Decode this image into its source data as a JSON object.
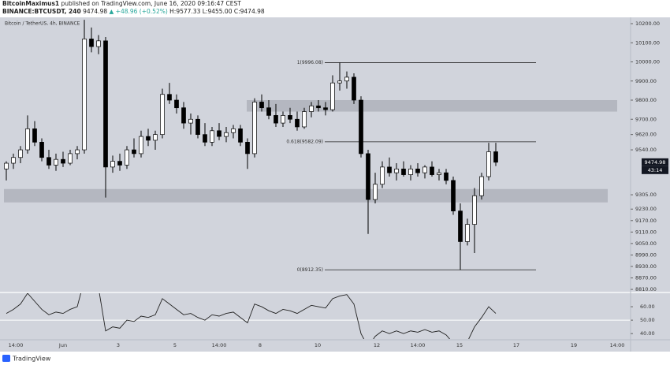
{
  "header": {
    "author": "BitcoinMaximus1",
    "published": "published on TradingView.com, June 16, 2020 09:16:47 CEST",
    "symbol": "BINANCE:BTCUSDT, 240",
    "last": "9474.98",
    "change": "▲ +48.96 (+0.52%)",
    "high": "H:9577.33",
    "low": "L:9455.00",
    "close": "C:9474.98"
  },
  "footer": {
    "brand": "TradingView"
  },
  "chart_data": [
    {
      "type": "candlestick",
      "title": "Bitcoin / TetherUS, 4h, BINANCE",
      "open": [
        9440,
        9470,
        9500,
        9540,
        9650,
        9580,
        9500,
        9460,
        9490,
        9470,
        9520,
        9540,
        10120,
        10080,
        10110,
        9450,
        9480,
        9460,
        9540,
        9520,
        9610,
        9590,
        9620,
        9830,
        9800,
        9760,
        9680,
        9700,
        9620,
        9580,
        9640,
        9610,
        9630,
        9650,
        9580,
        9520,
        9790,
        9760,
        9720,
        9680,
        9720,
        9700,
        9660,
        9740,
        9770,
        9760,
        9750,
        9890,
        9900,
        9920,
        9800,
        9520,
        9280,
        9360,
        9450,
        9420,
        9440,
        9410,
        9440,
        9420,
        9450,
        9410,
        9420,
        9380,
        9220,
        9060,
        9150,
        9300,
        9400,
        9530
      ],
      "high": [
        9480,
        9520,
        9560,
        9720,
        9690,
        9600,
        9540,
        9520,
        9530,
        9540,
        9560,
        10220,
        10180,
        10140,
        10130,
        9510,
        9520,
        9560,
        9600,
        9640,
        9650,
        9640,
        9860,
        9890,
        9830,
        9790,
        9730,
        9720,
        9680,
        9660,
        9680,
        9660,
        9670,
        9670,
        9600,
        9810,
        9830,
        9800,
        9780,
        9740,
        9760,
        9740,
        9760,
        9790,
        9800,
        9790,
        9930,
        9996,
        9950,
        9940,
        9820,
        9540,
        9420,
        9480,
        9500,
        9470,
        9480,
        9460,
        9470,
        9460,
        9480,
        9440,
        9440,
        9400,
        9260,
        9180,
        9340,
        9420,
        9577,
        9577
      ],
      "low": [
        9380,
        9440,
        9470,
        9520,
        9560,
        9480,
        9440,
        9430,
        9450,
        9460,
        9490,
        9520,
        10050,
        10040,
        9290,
        9420,
        9430,
        9440,
        9500,
        9500,
        9560,
        9540,
        9600,
        9780,
        9730,
        9650,
        9620,
        9600,
        9560,
        9560,
        9590,
        9580,
        9600,
        9560,
        9440,
        9500,
        9740,
        9700,
        9660,
        9660,
        9680,
        9640,
        9650,
        9710,
        9740,
        9720,
        9740,
        9850,
        9860,
        9780,
        9500,
        9100,
        9260,
        9340,
        9400,
        9380,
        9400,
        9380,
        9400,
        9390,
        9400,
        9380,
        9360,
        9200,
        8912,
        9040,
        9000,
        9280,
        9380,
        9455
      ],
      "close": [
        9470,
        9500,
        9540,
        9650,
        9580,
        9500,
        9460,
        9490,
        9470,
        9520,
        9540,
        10120,
        10080,
        10110,
        9450,
        9480,
        9460,
        9540,
        9520,
        9610,
        9590,
        9620,
        9830,
        9800,
        9760,
        9680,
        9700,
        9620,
        9580,
        9640,
        9610,
        9630,
        9650,
        9580,
        9520,
        9790,
        9760,
        9720,
        9680,
        9720,
        9700,
        9660,
        9740,
        9770,
        9760,
        9750,
        9890,
        9900,
        9920,
        9800,
        9520,
        9280,
        9360,
        9450,
        9420,
        9440,
        9410,
        9440,
        9420,
        9450,
        9410,
        9420,
        9380,
        9220,
        9060,
        9150,
        9300,
        9400,
        9530,
        9474.98
      ],
      "ylim": [
        8798,
        10233
      ],
      "yticks": [
        {
          "value": 10200,
          "label": "10200.00"
        },
        {
          "value": 10100,
          "label": "10100.00"
        },
        {
          "value": 10000,
          "label": "10000.00"
        },
        {
          "value": 9900,
          "label": "9900.00"
        },
        {
          "value": 9800,
          "label": "9800.00"
        },
        {
          "value": 9700,
          "label": "9700.00"
        },
        {
          "value": 9620,
          "label": "9620.00"
        },
        {
          "value": 9540,
          "label": "9540.00"
        },
        {
          "value": 9305,
          "label": "9305.00"
        },
        {
          "value": 9230,
          "label": "9230.00"
        },
        {
          "value": 9170,
          "label": "9170.00"
        },
        {
          "value": 9110,
          "label": "9110.00"
        },
        {
          "value": 9050,
          "label": "9050.00"
        },
        {
          "value": 8990,
          "label": "8990.00"
        },
        {
          "value": 8930,
          "label": "8930.00"
        },
        {
          "value": 8870,
          "label": "8870.00"
        },
        {
          "value": 8810,
          "label": "8810.00"
        }
      ],
      "fib": [
        {
          "value": 9996.08,
          "label": "1(9996.08)"
        },
        {
          "value": 9582.09,
          "label": "0.618(9582.09)"
        },
        {
          "value": 8912.35,
          "label": "0(8912.35)"
        }
      ],
      "zones": [
        [
          9740,
          9800
        ],
        [
          9265,
          9335
        ]
      ],
      "last_label": "9474.98",
      "countdown": "43:14",
      "time_labels": [
        "14:00",
        "Jun",
        "3",
        "5",
        "14:00",
        "8",
        "10",
        "12",
        "14:00",
        "15",
        "17",
        "19",
        "14:00"
      ],
      "up_color": "#ffffff",
      "down_color": "#000000"
    },
    {
      "type": "line",
      "values": [
        55,
        58,
        62,
        70,
        64,
        58,
        54,
        56,
        55,
        58,
        60,
        80,
        76,
        74,
        42,
        45,
        44,
        50,
        49,
        53,
        52,
        54,
        66,
        62,
        58,
        54,
        55,
        52,
        50,
        54,
        53,
        55,
        56,
        52,
        48,
        62,
        60,
        57,
        55,
        58,
        57,
        55,
        58,
        61,
        60,
        59,
        66,
        68,
        69,
        62,
        40,
        30,
        38,
        42,
        40,
        42,
        40,
        42,
        41,
        43,
        41,
        42,
        39,
        33,
        28,
        34,
        45,
        52,
        60,
        55
      ],
      "ylim": [
        36,
        70
      ],
      "level": 50,
      "yticks": [
        {
          "value": 60,
          "label": "60.00"
        },
        {
          "value": 50,
          "label": "50.00"
        },
        {
          "value": 40,
          "label": "40.00"
        }
      ],
      "color": "#222222"
    }
  ]
}
